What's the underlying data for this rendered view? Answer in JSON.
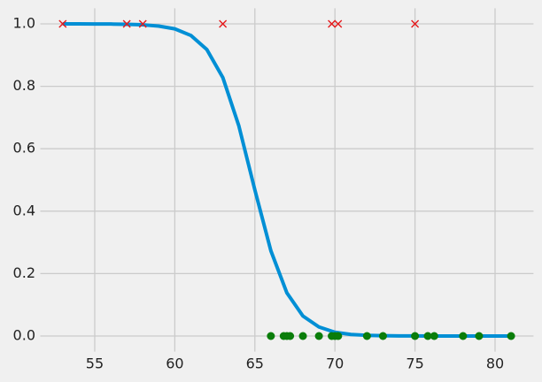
{
  "chart_data": {
    "type": "line",
    "xlim": [
      51.6,
      82.4
    ],
    "ylim": [
      -0.05,
      1.05
    ],
    "xticks": [
      55,
      60,
      65,
      70,
      75,
      80
    ],
    "yticks": [
      {
        "value": 0,
        "label": "0.0"
      },
      0.2,
      0.4,
      0.6,
      0.8,
      {
        "value": 1,
        "label": "1.0"
      }
    ],
    "grid": true,
    "series": [
      {
        "type": "line",
        "color": "#008fd5",
        "x": [
          53,
          54,
          55,
          56,
          57,
          58,
          59,
          60,
          61,
          62,
          63,
          64,
          65,
          66,
          67,
          68,
          69,
          70,
          71,
          72,
          73,
          74,
          75,
          76,
          77,
          78,
          79,
          80,
          81
        ],
        "values": [
          1.0,
          1.0,
          0.9998,
          0.9995,
          0.9987,
          0.997,
          0.993,
          0.984,
          0.963,
          0.918,
          0.828,
          0.673,
          0.468,
          0.273,
          0.138,
          0.064,
          0.029,
          0.012,
          0.005,
          0.0023,
          0.001,
          0.0004,
          0.0002,
          0.0001,
          0,
          0,
          0,
          0,
          0
        ]
      },
      {
        "type": "scatter",
        "marker": "x",
        "color": "#e5191b",
        "x": [
          53,
          57,
          58,
          63,
          69.8,
          70.2,
          75
        ],
        "values": [
          1,
          1,
          1,
          1,
          1,
          1,
          1
        ]
      },
      {
        "type": "scatter",
        "marker": "o",
        "color": "#0a7d0a",
        "x": [
          66,
          66.8,
          67,
          67.2,
          68,
          69,
          69.8,
          70,
          70.2,
          72,
          73,
          75,
          75.8,
          76.2,
          78,
          79,
          81
        ],
        "values": [
          0,
          0,
          0,
          0,
          0,
          0,
          0,
          0,
          0,
          0,
          0,
          0,
          0,
          0,
          0,
          0,
          0
        ]
      }
    ]
  }
}
